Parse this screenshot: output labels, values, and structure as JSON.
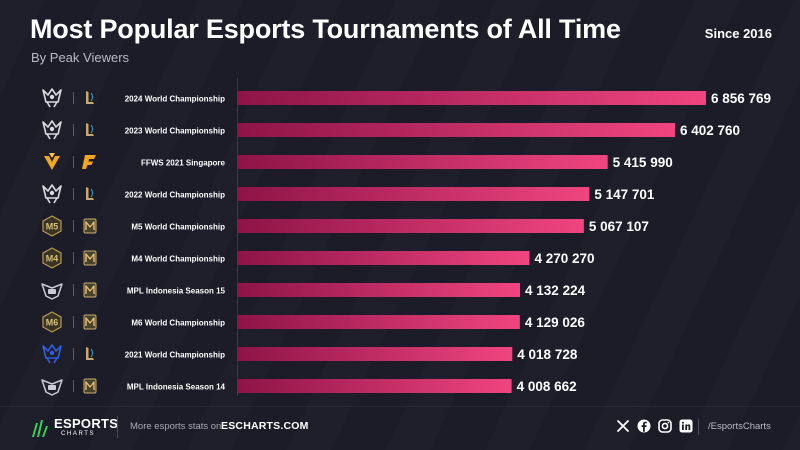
{
  "header": {
    "title": "Most Popular Esports Tournaments of All Time",
    "subtitle": "By Peak Viewers",
    "since": "Since 2016"
  },
  "colors": {
    "background": "#1b1c27",
    "bar_start": "#8e1447",
    "bar_end": "#f0457f",
    "text": "#ffffff",
    "muted": "#b9bac6"
  },
  "chart_data": {
    "type": "bar",
    "orientation": "horizontal",
    "title": "Most Popular Esports Tournaments of All Time",
    "subtitle": "By Peak Viewers",
    "categories": [
      "2024 World Championship",
      "2023 World Championship",
      "FFWS 2021 Singapore",
      "2022 World Championship",
      "M5 World Championship",
      "M4 World Championship",
      "MPL Indonesia Season 15",
      "M6 World Championship",
      "2021 World Championship",
      "MPL Indonesia Season 14"
    ],
    "values": [
      6856769,
      6402760,
      5415990,
      5147701,
      5067107,
      4270270,
      4132224,
      4129026,
      4018728,
      4008662
    ],
    "value_labels": [
      "6 856 769",
      "6 402 760",
      "5 415 990",
      "5 147 701",
      "5 067 107",
      "4 270 270",
      "4 132 224",
      "4 129 026",
      "4 018 728",
      "4 008 662"
    ],
    "icons": [
      {
        "event": "worlds-trophy-icon",
        "game": "league-of-legends-icon"
      },
      {
        "event": "worlds-trophy-icon",
        "game": "league-of-legends-icon"
      },
      {
        "event": "ffws-icon",
        "game": "free-fire-icon"
      },
      {
        "event": "worlds-trophy-icon",
        "game": "league-of-legends-icon"
      },
      {
        "event": "m5-badge-icon",
        "game": "mobile-legends-icon"
      },
      {
        "event": "m4-badge-icon",
        "game": "mobile-legends-icon"
      },
      {
        "event": "mpl-id-icon",
        "game": "mobile-legends-icon"
      },
      {
        "event": "m6-badge-icon",
        "game": "mobile-legends-icon"
      },
      {
        "event": "worlds-2021-icon",
        "game": "league-of-legends-icon"
      },
      {
        "event": "mpl-id-icon",
        "game": "mobile-legends-icon"
      }
    ],
    "xlim": [
      0,
      6856769
    ],
    "grid": false,
    "legend": "none"
  },
  "footer": {
    "brand": "ESPORTS",
    "brand_sub": "CHARTS",
    "more": "More esports stats on",
    "site": "ESCHARTS.COM",
    "social_icons": [
      "x-icon",
      "facebook-icon",
      "instagram-icon",
      "linkedin-icon"
    ],
    "handle": "/EsportsCharts"
  }
}
